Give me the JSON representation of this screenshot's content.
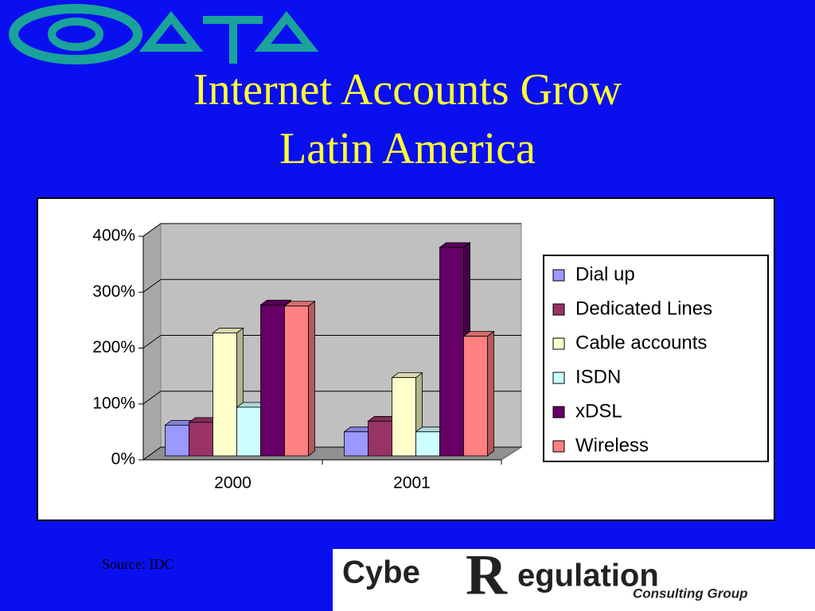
{
  "title": [
    "Internet Accounts Grow",
    "Latin America"
  ],
  "source": "Source: IDC",
  "logo": {
    "parts": [
      "Cybe",
      "R",
      "egulation"
    ],
    "tagline": "Consulting Group"
  },
  "chart_data": {
    "type": "bar",
    "categories": [
      "2000",
      "2001"
    ],
    "series": [
      {
        "name": "Dial up",
        "color": "#9999ff",
        "values": [
          55,
          43
        ]
      },
      {
        "name": "Dedicated Lines",
        "color": "#993366",
        "values": [
          60,
          62
        ]
      },
      {
        "name": "Cable accounts",
        "color": "#ffffcc",
        "values": [
          220,
          140
        ]
      },
      {
        "name": "ISDN",
        "color": "#ccffff",
        "values": [
          87,
          43
        ]
      },
      {
        "name": "xDSL",
        "color": "#660066",
        "values": [
          270,
          373
        ]
      },
      {
        "name": "Wireless",
        "color": "#ff8080",
        "values": [
          268,
          214
        ]
      }
    ],
    "ylim": [
      0,
      400
    ],
    "yticks": [
      {
        "value": 0,
        "label": "0%"
      },
      {
        "value": 100,
        "label": "100%"
      },
      {
        "value": 200,
        "label": "200%"
      },
      {
        "value": 300,
        "label": "300%"
      },
      {
        "value": 400,
        "label": "400%"
      }
    ],
    "grid": true,
    "legend": "right"
  }
}
